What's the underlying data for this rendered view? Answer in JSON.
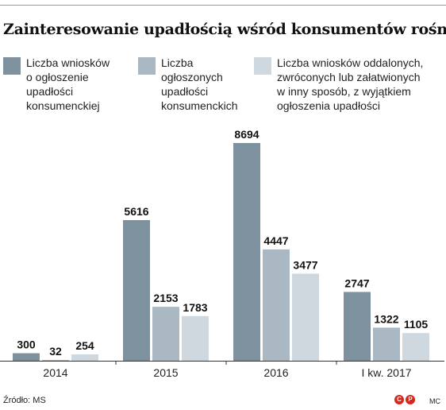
{
  "title": "Zainteresowanie upadłością wśród konsumentów rośnie",
  "colors": {
    "series1": "#7d929e",
    "series2": "#a9b8c2",
    "series3": "#cfd8de",
    "axis": "#333333"
  },
  "chart_data": {
    "type": "bar",
    "title": "Zainteresowanie upadłością wśród konsumentów rośnie",
    "categories": [
      "2014",
      "2015",
      "2016",
      "I kw. 2017"
    ],
    "series": [
      {
        "name": "Liczba wniosków o ogłoszenie upadłości konsumenckiej",
        "values": [
          300,
          5616,
          8694,
          2747
        ]
      },
      {
        "name": "Liczba ogłoszonych upadłości konsumenckich",
        "values": [
          32,
          2153,
          4447,
          1322
        ]
      },
      {
        "name": "Liczba wniosków oddalonych, zwróconych lub załatwionych w inny sposób, z wyjątkiem ogłoszenia upadłości",
        "values": [
          254,
          1783,
          3477,
          1105
        ]
      }
    ],
    "value_labels": [
      [
        "300",
        "5616",
        "8694",
        "2747"
      ],
      [
        "32",
        "2153",
        "4447",
        "1322"
      ],
      [
        "254",
        "1783",
        "3477",
        "1105"
      ]
    ],
    "ylim": [
      0,
      8694
    ],
    "grid": false,
    "legend_position": "top"
  },
  "legend": [
    {
      "lines": [
        "Liczba wniosków",
        "o ogłoszenie",
        "upadłości",
        "konsumenckiej"
      ]
    },
    {
      "lines": [
        "Liczba",
        "ogłoszonych",
        "upadłości",
        "konsumenckich"
      ]
    },
    {
      "lines": [
        "Liczba wniosków oddalonych,",
        "zwróconych lub załatwionych",
        "w inny sposób, z wyjątkiem",
        "ogłoszenia upadłości"
      ]
    }
  ],
  "footer": {
    "source": "Źródło: MS",
    "logo_letters": [
      "C",
      "P"
    ],
    "author": "MC"
  }
}
